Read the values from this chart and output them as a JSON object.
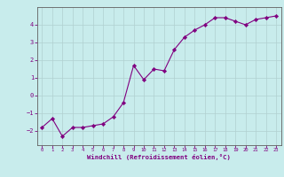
{
  "title": "",
  "xlabel": "Windchill (Refroidissement éolien,°C)",
  "ylabel": "",
  "background_color": "#c8ecec",
  "line_color": "#800080",
  "marker_color": "#800080",
  "grid_color": "#b0d0d0",
  "axis_label_color": "#800080",
  "tick_label_color": "#800080",
  "spine_color": "#606060",
  "x_data": [
    0,
    1,
    2,
    3,
    4,
    5,
    6,
    7,
    8,
    9,
    10,
    11,
    12,
    13,
    14,
    15,
    16,
    17,
    18,
    19,
    20,
    21,
    22,
    23
  ],
  "y_data": [
    -1.8,
    -1.3,
    -2.3,
    -1.8,
    -1.8,
    -1.7,
    -1.6,
    -1.2,
    -0.4,
    1.7,
    0.9,
    1.5,
    1.4,
    2.6,
    3.3,
    3.7,
    4.0,
    4.4,
    4.4,
    4.2,
    4.0,
    4.3,
    4.4,
    4.5
  ],
  "xlim": [
    -0.5,
    23.5
  ],
  "ylim": [
    -2.8,
    5.0
  ],
  "yticks": [
    -2,
    -1,
    0,
    1,
    2,
    3,
    4
  ],
  "xticks": [
    0,
    1,
    2,
    3,
    4,
    5,
    6,
    7,
    8,
    9,
    10,
    11,
    12,
    13,
    14,
    15,
    16,
    17,
    18,
    19,
    20,
    21,
    22,
    23
  ]
}
